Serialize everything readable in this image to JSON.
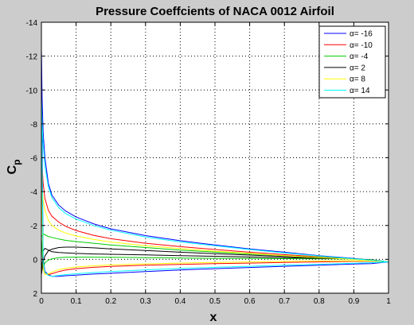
{
  "chart_data": {
    "type": "line",
    "title": "Pressure Coeffcients of NACA 0012 Airfoil",
    "xlabel": "x",
    "ylabel": "C",
    "ylabel_subscript": "p",
    "xlim": [
      0,
      1
    ],
    "ylim": [
      2,
      -14
    ],
    "y_axis_reversed": true,
    "grid": true,
    "grid_style": "dotted",
    "legend_position": "top-right",
    "xticks": [
      "0",
      "0.1",
      "0.2",
      "0.3",
      "0.4",
      "0.5",
      "0.6",
      "0.7",
      "0.8",
      "0.9",
      "1"
    ],
    "xtick_values": [
      0,
      0.1,
      0.2,
      0.3,
      0.4,
      0.5,
      0.6,
      0.7,
      0.8,
      0.9,
      1
    ],
    "yticks": [
      "-14",
      "-12",
      "-10",
      "-8",
      "-6",
      "-4",
      "-2",
      "0",
      "2"
    ],
    "ytick_values": [
      -14,
      -12,
      -10,
      -8,
      -6,
      -4,
      -2,
      0,
      2
    ],
    "series": [
      {
        "name": "α= -16",
        "color": "#0000ff",
        "surfaces": [
          {
            "x": [
              0,
              0.002,
              0.005,
              0.01,
              0.02,
              0.03,
              0.05,
              0.07,
              0.1,
              0.15,
              0.2,
              0.3,
              0.4,
              0.5,
              0.6,
              0.7,
              0.8,
              0.9,
              0.95,
              1.0
            ],
            "y": [
              -12.4,
              -9.5,
              -7.5,
              -6.0,
              -4.5,
              -3.8,
              -3.2,
              -2.85,
              -2.5,
              -2.1,
              -1.8,
              -1.4,
              -1.1,
              -0.85,
              -0.62,
              -0.42,
              -0.22,
              -0.05,
              0.05,
              0.15
            ]
          },
          {
            "x": [
              0,
              0.005,
              0.01,
              0.02,
              0.03,
              0.05,
              0.07,
              0.1,
              0.15,
              0.2,
              0.3,
              0.4,
              0.5,
              0.6,
              0.7,
              0.8,
              0.9,
              0.95,
              1.0
            ],
            "y": [
              -12.4,
              0.0,
              0.7,
              0.9,
              1.0,
              1.0,
              0.97,
              0.93,
              0.87,
              0.82,
              0.72,
              0.63,
              0.55,
              0.48,
              0.41,
              0.35,
              0.28,
              0.25,
              0.15
            ]
          }
        ]
      },
      {
        "name": "α= -10",
        "color": "#ff0000",
        "surfaces": [
          {
            "x": [
              0,
              0.002,
              0.005,
              0.01,
              0.02,
              0.03,
              0.05,
              0.07,
              0.1,
              0.15,
              0.2,
              0.3,
              0.4,
              0.5,
              0.6,
              0.7,
              0.8,
              0.9,
              0.95,
              1.0
            ],
            "y": [
              -6.5,
              -5.5,
              -4.5,
              -3.6,
              -2.9,
              -2.55,
              -2.2,
              -1.95,
              -1.7,
              -1.42,
              -1.22,
              -0.95,
              -0.75,
              -0.58,
              -0.42,
              -0.28,
              -0.15,
              -0.02,
              0.05,
              0.15
            ]
          },
          {
            "x": [
              0,
              0.005,
              0.01,
              0.02,
              0.03,
              0.05,
              0.07,
              0.1,
              0.15,
              0.2,
              0.3,
              0.4,
              0.5,
              0.6,
              0.7,
              0.8,
              0.9,
              0.95,
              1.0
            ],
            "y": [
              -6.5,
              0.3,
              0.8,
              0.9,
              0.85,
              0.72,
              0.63,
              0.55,
              0.47,
              0.42,
              0.35,
              0.3,
              0.25,
              0.22,
              0.18,
              0.15,
              0.12,
              0.12,
              0.15
            ]
          }
        ]
      },
      {
        "name": "α= -4",
        "color": "#00cc00",
        "surfaces": [
          {
            "x": [
              0,
              0.005,
              0.01,
              0.02,
              0.03,
              0.05,
              0.07,
              0.1,
              0.15,
              0.2,
              0.3,
              0.4,
              0.5,
              0.6,
              0.7,
              0.8,
              0.9,
              0.95,
              1.0
            ],
            "y": [
              -1.3,
              -1.5,
              -1.45,
              -1.35,
              -1.3,
              -1.2,
              -1.12,
              -1.05,
              -0.95,
              -0.85,
              -0.7,
              -0.55,
              -0.43,
              -0.32,
              -0.22,
              -0.12,
              0.0,
              0.05,
              0.15
            ]
          },
          {
            "x": [
              0,
              0.005,
              0.01,
              0.02,
              0.03,
              0.05,
              0.07,
              0.1,
              0.15,
              0.2,
              0.3,
              0.4,
              0.5,
              0.6,
              0.7,
              0.8,
              0.9,
              0.95,
              1.0
            ],
            "y": [
              -1.3,
              0.5,
              0.2,
              0.05,
              -0.03,
              -0.1,
              -0.12,
              -0.13,
              -0.13,
              -0.12,
              -0.1,
              -0.08,
              -0.06,
              -0.05,
              -0.04,
              -0.03,
              -0.02,
              0.02,
              0.15
            ]
          }
        ]
      },
      {
        "name": "α= 2",
        "color": "#000000",
        "surfaces": [
          {
            "x": [
              0,
              0.005,
              0.01,
              0.02,
              0.03,
              0.05,
              0.07,
              0.1,
              0.15,
              0.2,
              0.3,
              0.4,
              0.5,
              0.6,
              0.7,
              0.8,
              0.9,
              0.95,
              1.0
            ],
            "y": [
              0.9,
              0.2,
              -0.2,
              -0.5,
              -0.6,
              -0.7,
              -0.72,
              -0.72,
              -0.68,
              -0.62,
              -0.52,
              -0.42,
              -0.33,
              -0.25,
              -0.17,
              -0.1,
              -0.02,
              0.03,
              0.15
            ]
          },
          {
            "x": [
              0,
              0.005,
              0.01,
              0.02,
              0.03,
              0.05,
              0.07,
              0.1,
              0.15,
              0.2,
              0.3,
              0.4,
              0.5,
              0.6,
              0.7,
              0.8,
              0.9,
              0.95,
              1.0
            ],
            "y": [
              0.9,
              -0.5,
              -0.65,
              -0.55,
              -0.45,
              -0.4,
              -0.38,
              -0.35,
              -0.32,
              -0.3,
              -0.26,
              -0.22,
              -0.18,
              -0.14,
              -0.1,
              -0.06,
              -0.02,
              0.03,
              0.15
            ]
          }
        ]
      },
      {
        "name": "α= 8",
        "color": "#ffff00",
        "surfaces": [
          {
            "x": [
              0,
              0.002,
              0.005,
              0.01,
              0.02,
              0.03,
              0.05,
              0.07,
              0.1,
              0.15,
              0.2,
              0.3,
              0.4,
              0.5,
              0.6,
              0.7,
              0.8,
              0.9,
              0.95,
              1.0
            ],
            "y": [
              -5.0,
              -4.2,
              -3.5,
              -2.9,
              -2.3,
              -2.0,
              -1.72,
              -1.55,
              -1.38,
              -1.18,
              -1.02,
              -0.8,
              -0.63,
              -0.48,
              -0.35,
              -0.22,
              -0.1,
              0.0,
              0.05,
              0.15
            ]
          },
          {
            "x": [
              0,
              0.005,
              0.01,
              0.02,
              0.03,
              0.05,
              0.07,
              0.1,
              0.15,
              0.2,
              0.3,
              0.4,
              0.5,
              0.6,
              0.7,
              0.8,
              0.9,
              0.95,
              1.0
            ],
            "y": [
              -5.0,
              0.6,
              0.9,
              0.85,
              0.75,
              0.6,
              0.52,
              0.45,
              0.38,
              0.33,
              0.27,
              0.22,
              0.18,
              0.15,
              0.12,
              0.1,
              0.08,
              0.1,
              0.15
            ]
          }
        ]
      },
      {
        "name": "α= 14",
        "color": "#00ffff",
        "surfaces": [
          {
            "x": [
              0,
              0.002,
              0.005,
              0.01,
              0.02,
              0.03,
              0.05,
              0.07,
              0.1,
              0.15,
              0.2,
              0.3,
              0.4,
              0.5,
              0.6,
              0.7,
              0.8,
              0.9,
              0.95,
              1.0
            ],
            "y": [
              -9.5,
              -8.0,
              -6.8,
              -5.5,
              -4.3,
              -3.65,
              -3.05,
              -2.7,
              -2.38,
              -2.0,
              -1.72,
              -1.32,
              -1.03,
              -0.8,
              -0.58,
              -0.38,
              -0.2,
              -0.03,
              0.05,
              0.15
            ]
          },
          {
            "x": [
              0,
              0.005,
              0.01,
              0.02,
              0.03,
              0.05,
              0.07,
              0.1,
              0.15,
              0.2,
              0.3,
              0.4,
              0.5,
              0.6,
              0.7,
              0.8,
              0.9,
              0.95,
              1.0
            ],
            "y": [
              -9.5,
              0.2,
              0.75,
              0.95,
              1.0,
              0.95,
              0.9,
              0.85,
              0.78,
              0.72,
              0.62,
              0.54,
              0.47,
              0.41,
              0.35,
              0.29,
              0.23,
              0.2,
              0.15
            ]
          }
        ]
      }
    ]
  }
}
